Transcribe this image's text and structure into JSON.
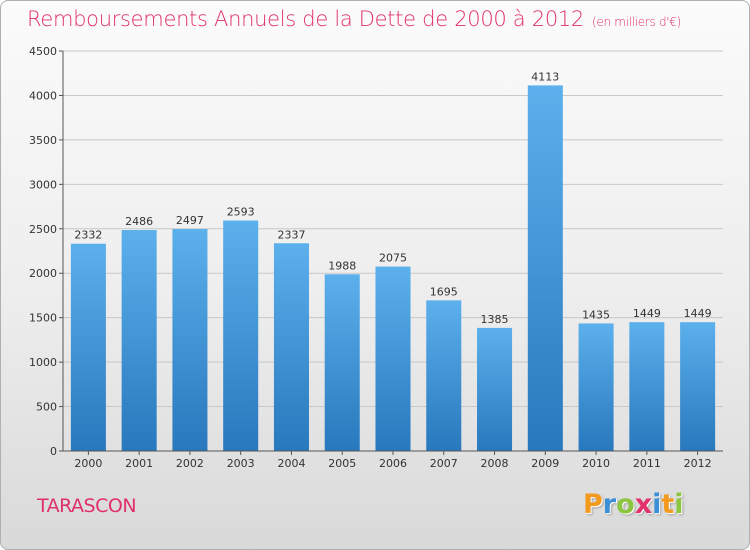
{
  "header": {
    "title": "Remboursements Annuels de la Dette de 2000 à 2012",
    "unit": "(en milliers d'€)"
  },
  "footer": {
    "city": "TARASCON",
    "logo_letters": [
      "P",
      "r",
      "o",
      "x",
      "i",
      "t",
      "i"
    ],
    "logo_colors": [
      "#f29a1e",
      "#3b8fd6",
      "#8cc63f",
      "#e2306c",
      "#3b8fd6",
      "#f29a1e",
      "#8cc63f"
    ]
  },
  "colors": {
    "title": "#e0306a",
    "bar_top": "#5cb0ec",
    "bar_bottom": "#2878bd",
    "grid": "#c8c8c8"
  },
  "chart_data": {
    "type": "bar",
    "categories": [
      "2000",
      "2001",
      "2002",
      "2003",
      "2004",
      "2005",
      "2006",
      "2007",
      "2008",
      "2009",
      "2010",
      "2011",
      "2012"
    ],
    "values": [
      2332,
      2486,
      2497,
      2593,
      2337,
      1988,
      2075,
      1695,
      1385,
      4113,
      1435,
      1449,
      1449
    ],
    "ylim": [
      0,
      4500
    ],
    "yticks": [
      0,
      500,
      1000,
      1500,
      2000,
      2500,
      3000,
      3500,
      4000,
      4500
    ],
    "grid": true,
    "legend": "none"
  }
}
